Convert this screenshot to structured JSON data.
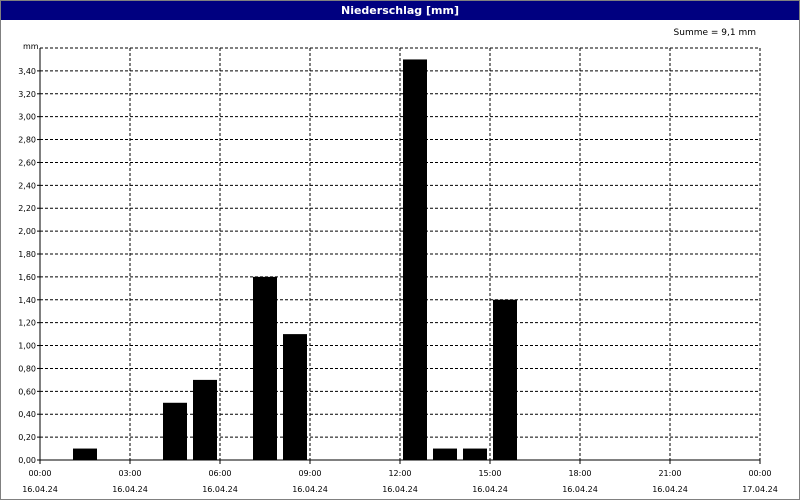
{
  "window": {
    "title": "Niederschlag [mm]"
  },
  "chart_data": {
    "type": "bar",
    "title": "Niederschlag [mm]",
    "ylabel": "mm",
    "xlabel": "",
    "annotation": "Summe = 9,1 mm",
    "ylim": [
      0,
      3.6
    ],
    "y_ticks": [
      "0,00",
      "0,20",
      "0,40",
      "0,60",
      "0,80",
      "1,00",
      "1,20",
      "1,40",
      "1,60",
      "1,80",
      "2,00",
      "2,20",
      "2,40",
      "2,60",
      "2,80",
      "3,00",
      "3,20",
      "3,40"
    ],
    "x_ticks": [
      {
        "time": "00:00",
        "date": "16.04.24"
      },
      {
        "time": "03:00",
        "date": "16.04.24"
      },
      {
        "time": "06:00",
        "date": "16.04.24"
      },
      {
        "time": "09:00",
        "date": "16.04.24"
      },
      {
        "time": "12:00",
        "date": "16.04.24"
      },
      {
        "time": "15:00",
        "date": "16.04.24"
      },
      {
        "time": "18:00",
        "date": "16.04.24"
      },
      {
        "time": "21:00",
        "date": "16.04.24"
      },
      {
        "time": "00:00",
        "date": "17.04.24"
      }
    ],
    "x_range_hours": [
      0,
      24
    ],
    "grid": true,
    "bar_color": "#000000",
    "bars": [
      {
        "hour": 1.5,
        "value": 0.1
      },
      {
        "hour": 4.5,
        "value": 0.5
      },
      {
        "hour": 5.5,
        "value": 0.7
      },
      {
        "hour": 7.5,
        "value": 1.6
      },
      {
        "hour": 8.5,
        "value": 1.1
      },
      {
        "hour": 12.5,
        "value": 3.5
      },
      {
        "hour": 13.5,
        "value": 0.1
      },
      {
        "hour": 14.5,
        "value": 0.1
      },
      {
        "hour": 15.5,
        "value": 1.4
      }
    ]
  }
}
